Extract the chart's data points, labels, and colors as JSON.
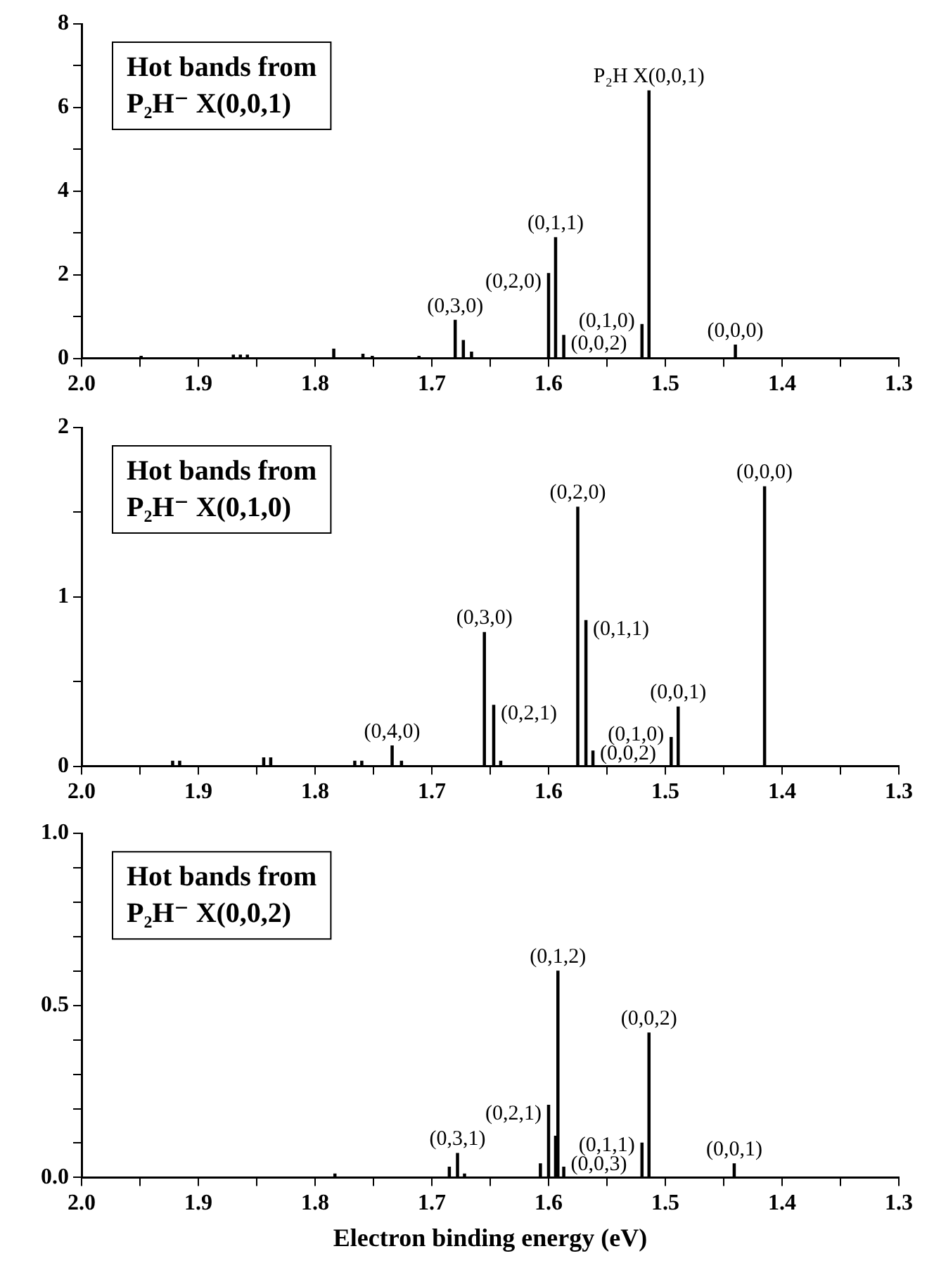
{
  "chart_data": [
    {
      "type": "bar",
      "title": "Hot bands from\nP₂H⁻ X(0,0,1)",
      "color": "#000000",
      "x": [
        1.949,
        1.87,
        1.864,
        1.858,
        1.784,
        1.759,
        1.751,
        1.711,
        1.68,
        1.673,
        1.666,
        1.6,
        1.594,
        1.587,
        1.52,
        1.514,
        1.44
      ],
      "values": [
        0.05,
        0.08,
        0.08,
        0.08,
        0.22,
        0.1,
        0.05,
        0.05,
        0.91,
        0.43,
        0.15,
        2.03,
        2.89,
        0.55,
        0.81,
        6.4,
        0.32
      ],
      "xlim": [
        2.0,
        1.3
      ],
      "xticks": [
        {
          "value": 2.0,
          "label": "2.0"
        },
        {
          "value": 1.95,
          "label": null
        },
        {
          "value": 1.9,
          "label": "1.9"
        },
        {
          "value": 1.85,
          "label": null
        },
        {
          "value": 1.8,
          "label": "1.8"
        },
        {
          "value": 1.75,
          "label": null
        },
        {
          "value": 1.7,
          "label": "1.7"
        },
        {
          "value": 1.65,
          "label": null
        },
        {
          "value": 1.6,
          "label": "1.6"
        },
        {
          "value": 1.55,
          "label": null
        },
        {
          "value": 1.5,
          "label": "1.5"
        },
        {
          "value": 1.45,
          "label": null
        },
        {
          "value": 1.4,
          "label": "1.4"
        },
        {
          "value": 1.35,
          "label": null
        },
        {
          "value": 1.3,
          "label": "1.3"
        }
      ],
      "ylim": [
        0,
        8
      ],
      "yticks": [
        0,
        {
          "value": 1,
          "label": null
        },
        2,
        {
          "value": 3,
          "label": null
        },
        4,
        {
          "value": 5,
          "label": null
        },
        6,
        {
          "value": 7,
          "label": null
        },
        8
      ],
      "grid": false,
      "legend": false,
      "annotations": [
        {
          "text": "(0,3,0)",
          "x": 1.68,
          "y": 0.91
        },
        {
          "text": "(0,2,0)",
          "x": 1.6,
          "y": 2.03
        },
        {
          "text": "(0,1,1)",
          "x": 1.594,
          "y": 2.89
        },
        {
          "text": "(0,0,2)",
          "x": 1.587,
          "y": 0.55
        },
        {
          "text": "(0,1,0)",
          "x": 1.52,
          "y": 0.81
        },
        {
          "text": "P₂H X(0,0,1)",
          "x": 1.514,
          "y": 6.4
        },
        {
          "text": "(0,0,0)",
          "x": 1.44,
          "y": 0.32
        }
      ]
    },
    {
      "type": "bar",
      "title": "Hot bands from\nP₂H⁻ X(0,1,0)",
      "color": "#000000",
      "x": [
        1.922,
        1.916,
        1.844,
        1.838,
        1.766,
        1.76,
        1.734,
        1.726,
        1.655,
        1.647,
        1.641,
        1.575,
        1.568,
        1.562,
        1.495,
        1.489,
        1.415
      ],
      "values": [
        0.03,
        0.03,
        0.05,
        0.05,
        0.03,
        0.03,
        0.12,
        0.03,
        0.79,
        0.36,
        0.03,
        1.53,
        0.86,
        0.09,
        0.17,
        0.35,
        1.65
      ],
      "xlim": [
        2.0,
        1.3
      ],
      "xticks": [
        {
          "value": 2.0,
          "label": "2.0"
        },
        {
          "value": 1.95,
          "label": null
        },
        {
          "value": 1.9,
          "label": "1.9"
        },
        {
          "value": 1.85,
          "label": null
        },
        {
          "value": 1.8,
          "label": "1.8"
        },
        {
          "value": 1.75,
          "label": null
        },
        {
          "value": 1.7,
          "label": "1.7"
        },
        {
          "value": 1.65,
          "label": null
        },
        {
          "value": 1.6,
          "label": "1.6"
        },
        {
          "value": 1.55,
          "label": null
        },
        {
          "value": 1.5,
          "label": "1.5"
        },
        {
          "value": 1.45,
          "label": null
        },
        {
          "value": 1.4,
          "label": "1.4"
        },
        {
          "value": 1.35,
          "label": null
        },
        {
          "value": 1.3,
          "label": "1.3"
        }
      ],
      "ylim": [
        0,
        2
      ],
      "yticks": [
        0,
        {
          "value": 0.5,
          "label": null
        },
        1,
        {
          "value": 1.5,
          "label": null
        },
        2
      ],
      "grid": false,
      "legend": false,
      "annotations": [
        {
          "text": "(0,4,0)",
          "x": 1.734,
          "y": 0.12
        },
        {
          "text": "(0,3,0)",
          "x": 1.655,
          "y": 0.79
        },
        {
          "text": "(0,2,1)",
          "x": 1.647,
          "y": 0.36
        },
        {
          "text": "(0,2,0)",
          "x": 1.575,
          "y": 1.53
        },
        {
          "text": "(0,1,1)",
          "x": 1.568,
          "y": 0.86
        },
        {
          "text": "(0,0,2)",
          "x": 1.562,
          "y": 0.09
        },
        {
          "text": "(0,1,0)",
          "x": 1.495,
          "y": 0.17
        },
        {
          "text": "(0,0,1)",
          "x": 1.489,
          "y": 0.35
        },
        {
          "text": "(0,0,0)",
          "x": 1.415,
          "y": 1.65
        }
      ]
    },
    {
      "type": "bar",
      "title": "Hot bands from\nP₂H⁻ X(0,0,2)",
      "xlabel": "Electron binding energy (eV)",
      "color": "#000000",
      "x": [
        1.783,
        1.685,
        1.678,
        1.672,
        1.607,
        1.6,
        1.594,
        1.592,
        1.587,
        1.52,
        1.514,
        1.441
      ],
      "values": [
        0.01,
        0.03,
        0.07,
        0.01,
        0.04,
        0.21,
        0.12,
        0.6,
        0.03,
        0.1,
        0.42,
        0.04
      ],
      "xlim": [
        2.0,
        1.3
      ],
      "xticks": [
        {
          "value": 2.0,
          "label": "2.0"
        },
        {
          "value": 1.95,
          "label": null
        },
        {
          "value": 1.9,
          "label": "1.9"
        },
        {
          "value": 1.85,
          "label": null
        },
        {
          "value": 1.8,
          "label": "1.8"
        },
        {
          "value": 1.75,
          "label": null
        },
        {
          "value": 1.7,
          "label": "1.7"
        },
        {
          "value": 1.65,
          "label": null
        },
        {
          "value": 1.6,
          "label": "1.6"
        },
        {
          "value": 1.55,
          "label": null
        },
        {
          "value": 1.5,
          "label": "1.5"
        },
        {
          "value": 1.45,
          "label": null
        },
        {
          "value": 1.4,
          "label": "1.4"
        },
        {
          "value": 1.35,
          "label": null
        },
        {
          "value": 1.3,
          "label": "1.3"
        }
      ],
      "ylim": [
        0,
        1
      ],
      "yticks": [
        {
          "value": 0,
          "label": "0.0"
        },
        {
          "value": 0.1,
          "label": null
        },
        {
          "value": 0.2,
          "label": null
        },
        {
          "value": 0.3,
          "label": null
        },
        {
          "value": 0.4,
          "label": null
        },
        {
          "value": 0.5,
          "label": "0.5"
        },
        {
          "value": 0.6,
          "label": null
        },
        {
          "value": 0.7,
          "label": null
        },
        {
          "value": 0.8,
          "label": null
        },
        {
          "value": 0.9,
          "label": null
        },
        {
          "value": 1,
          "label": "1.0"
        }
      ],
      "grid": false,
      "legend": false,
      "annotations": [
        {
          "text": "(0,3,1)",
          "x": 1.678,
          "y": 0.07
        },
        {
          "text": "(0,2,1)",
          "x": 1.6,
          "y": 0.21
        },
        {
          "text": "(0,1,2)",
          "x": 1.592,
          "y": 0.6
        },
        {
          "text": "(0,0,3)",
          "x": 1.587,
          "y": 0.03
        },
        {
          "text": "(0,1,1)",
          "x": 1.52,
          "y": 0.1
        },
        {
          "text": "(0,0,2)",
          "x": 1.514,
          "y": 0.42
        },
        {
          "text": "(0,0,1)",
          "x": 1.441,
          "y": 0.04
        }
      ]
    }
  ]
}
